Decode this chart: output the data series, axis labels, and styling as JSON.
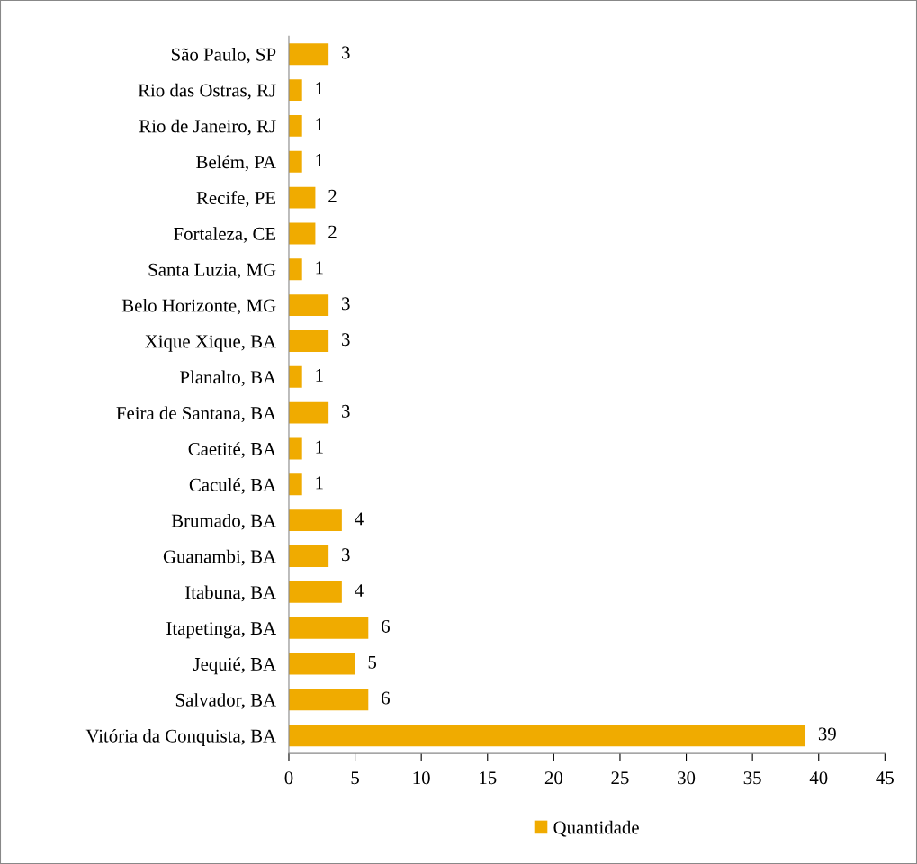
{
  "chart_data": {
    "type": "bar",
    "orientation": "horizontal",
    "categories": [
      "São Paulo, SP",
      "Rio das Ostras, RJ",
      "Rio de Janeiro, RJ",
      "Belém, PA",
      "Recife, PE",
      "Fortaleza, CE",
      "Santa Luzia, MG",
      "Belo Horizonte, MG",
      "Xique Xique, BA",
      "Planalto, BA",
      "Feira de Santana, BA",
      "Caetité, BA",
      "Caculé, BA",
      "Brumado, BA",
      "Guanambi, BA",
      "Itabuna, BA",
      "Itapetinga, BA",
      "Jequié, BA",
      "Salvador, BA",
      "Vitória da Conquista, BA"
    ],
    "series": [
      {
        "name": "Quantidade",
        "color": "#f0ab00",
        "values": [
          3,
          1,
          1,
          1,
          2,
          2,
          1,
          3,
          3,
          1,
          3,
          1,
          1,
          4,
          3,
          4,
          6,
          5,
          6,
          39
        ]
      }
    ],
    "xlim": [
      0,
      45
    ],
    "xticks": [
      0,
      5,
      10,
      15,
      20,
      25,
      30,
      35,
      40,
      45
    ],
    "data_labels": true,
    "grid": false,
    "legend": "bottom"
  }
}
